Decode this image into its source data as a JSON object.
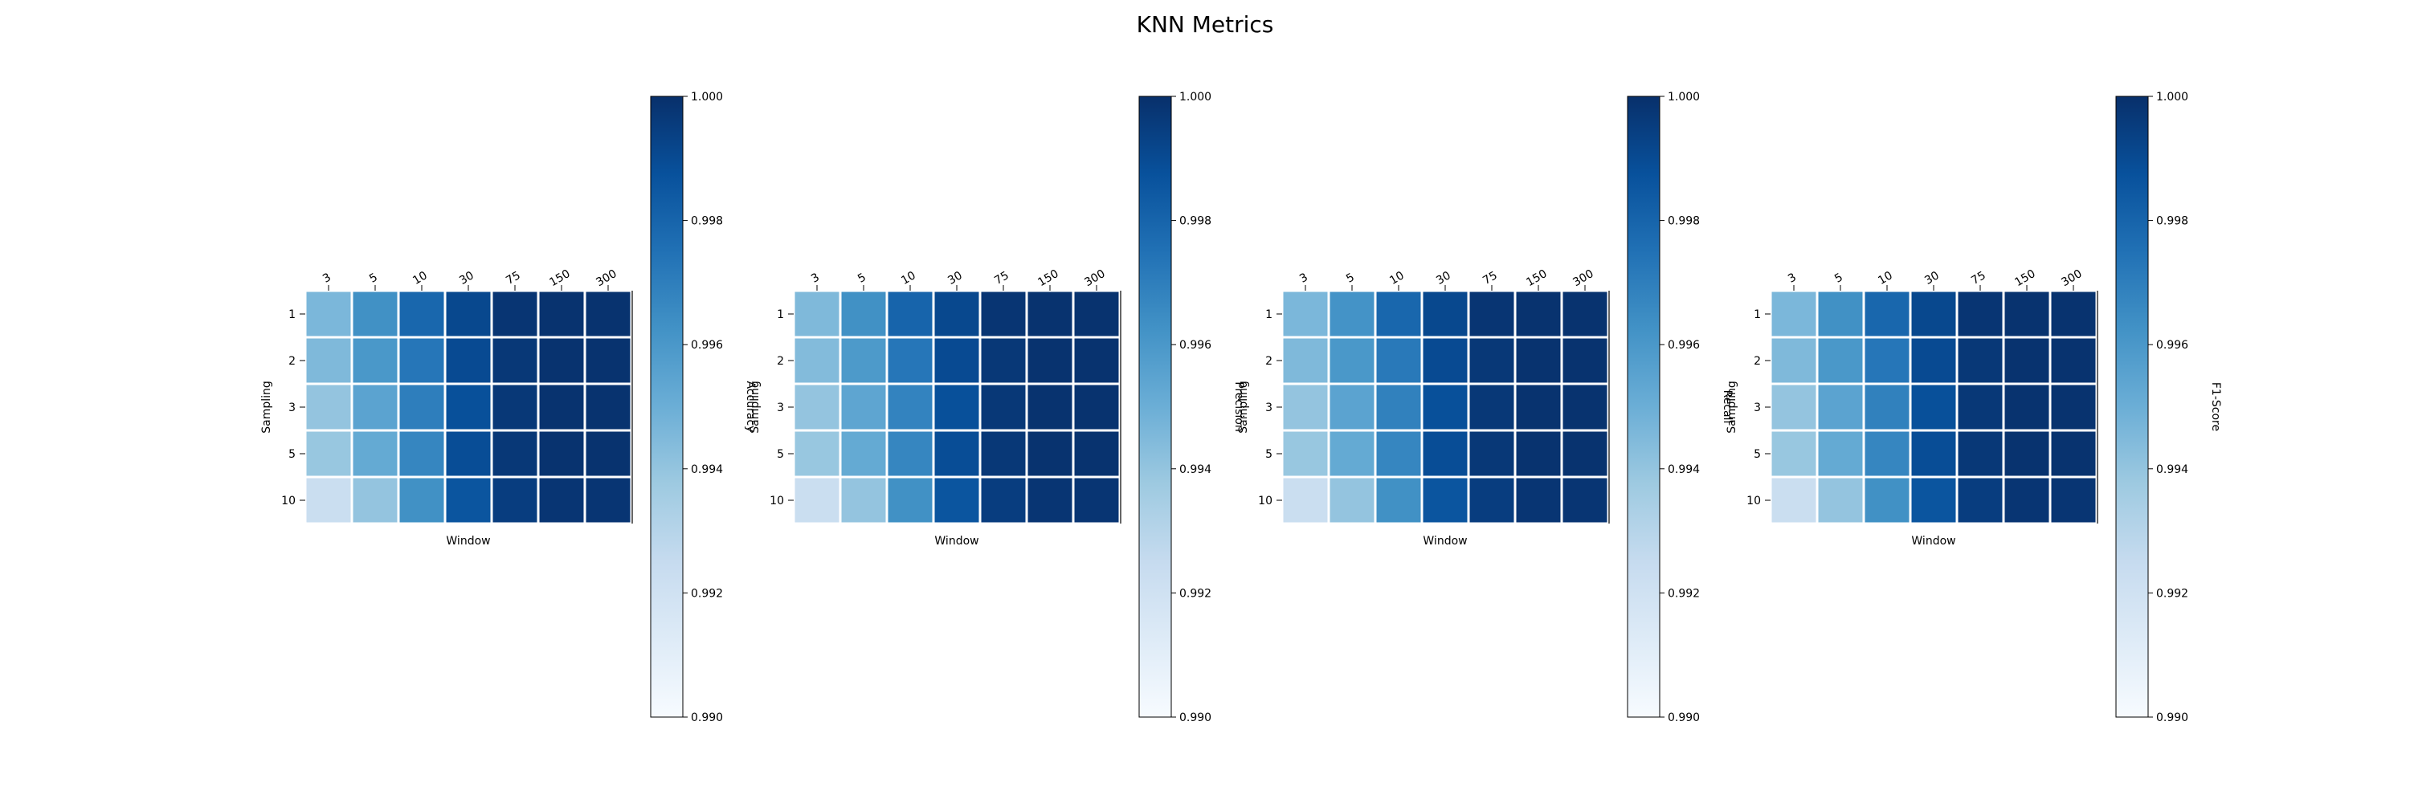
{
  "figure": {
    "title": "KNN Metrics"
  },
  "chart_data": [
    {
      "type": "heatmap",
      "title": "",
      "xlabel": "Window",
      "ylabel": "Sampling",
      "colorbar_label": "Accuracy",
      "colormap": "Blues",
      "vmin": 0.99,
      "vmax": 1.0,
      "colorbar_ticks": [
        "0.990",
        "0.992",
        "0.994",
        "0.996",
        "0.998",
        "1.000"
      ],
      "x": [
        "3",
        "5",
        "10",
        "30",
        "75",
        "150",
        "300"
      ],
      "y": [
        "1",
        "2",
        "3",
        "5",
        "10"
      ],
      "values": [
        [
          0.9946,
          0.9963,
          0.9979,
          0.9991,
          0.9998,
          0.9999,
          0.9999
        ],
        [
          0.9945,
          0.996,
          0.9973,
          0.999,
          0.9997,
          0.9999,
          0.9999
        ],
        [
          0.994,
          0.9955,
          0.997,
          0.9988,
          0.9997,
          0.9999,
          0.9999
        ],
        [
          0.9939,
          0.9952,
          0.9967,
          0.9989,
          0.9997,
          0.9999,
          0.9999
        ],
        [
          0.9923,
          0.994,
          0.9963,
          0.9986,
          0.9995,
          0.9998,
          0.9998
        ]
      ]
    },
    {
      "type": "heatmap",
      "title": "",
      "xlabel": "Window",
      "ylabel": "Sampling",
      "colorbar_label": "Precision",
      "colormap": "Blues",
      "vmin": 0.99,
      "vmax": 1.0,
      "colorbar_ticks": [
        "0.990",
        "0.992",
        "0.994",
        "0.996",
        "0.998",
        "1.000"
      ],
      "x": [
        "3",
        "5",
        "10",
        "30",
        "75",
        "150",
        "300"
      ],
      "y": [
        "1",
        "2",
        "3",
        "5",
        "10"
      ],
      "values": [
        [
          0.9945,
          0.9963,
          0.998,
          0.9991,
          0.9998,
          0.9999,
          0.9999
        ],
        [
          0.9944,
          0.9959,
          0.9973,
          0.999,
          0.9997,
          0.9999,
          0.9999
        ],
        [
          0.994,
          0.9954,
          0.9968,
          0.9988,
          0.9997,
          0.9999,
          0.9999
        ],
        [
          0.9939,
          0.9952,
          0.9967,
          0.9989,
          0.9997,
          0.9999,
          0.9999
        ],
        [
          0.9923,
          0.994,
          0.9963,
          0.9986,
          0.9995,
          0.9998,
          0.9998
        ]
      ]
    },
    {
      "type": "heatmap",
      "title": "",
      "xlabel": "Window",
      "ylabel": "Sampling",
      "colorbar_label": "Recall",
      "colormap": "Blues",
      "vmin": 0.99,
      "vmax": 1.0,
      "colorbar_ticks": [
        "0.990",
        "0.992",
        "0.994",
        "0.996",
        "0.998",
        "1.000"
      ],
      "x": [
        "3",
        "5",
        "10",
        "30",
        "75",
        "150",
        "300"
      ],
      "y": [
        "1",
        "2",
        "3",
        "5",
        "10"
      ],
      "values": [
        [
          0.9946,
          0.9962,
          0.9979,
          0.9991,
          0.9998,
          0.9999,
          0.9999
        ],
        [
          0.9945,
          0.996,
          0.9972,
          0.999,
          0.9997,
          0.9999,
          0.9999
        ],
        [
          0.994,
          0.9955,
          0.9969,
          0.9988,
          0.9997,
          0.9999,
          0.9999
        ],
        [
          0.9939,
          0.9952,
          0.9967,
          0.9989,
          0.9997,
          0.9999,
          0.9999
        ],
        [
          0.9923,
          0.994,
          0.9963,
          0.9986,
          0.9995,
          0.9998,
          0.9998
        ]
      ]
    },
    {
      "type": "heatmap",
      "title": "",
      "xlabel": "Window",
      "ylabel": "Sampling",
      "colorbar_label": "F1-Score",
      "colormap": "Blues",
      "vmin": 0.99,
      "vmax": 1.0,
      "colorbar_ticks": [
        "0.990",
        "0.992",
        "0.994",
        "0.996",
        "0.998",
        "1.000"
      ],
      "x": [
        "3",
        "5",
        "10",
        "30",
        "75",
        "150",
        "300"
      ],
      "y": [
        "1",
        "2",
        "3",
        "5",
        "10"
      ],
      "values": [
        [
          0.9946,
          0.9963,
          0.9979,
          0.9991,
          0.9998,
          0.9999,
          0.9999
        ],
        [
          0.9945,
          0.996,
          0.9973,
          0.999,
          0.9997,
          0.9999,
          0.9999
        ],
        [
          0.994,
          0.9955,
          0.9969,
          0.9988,
          0.9997,
          0.9999,
          0.9999
        ],
        [
          0.9939,
          0.9952,
          0.9967,
          0.9989,
          0.9997,
          0.9999,
          0.9999
        ],
        [
          0.9923,
          0.994,
          0.9963,
          0.9986,
          0.9995,
          0.9998,
          0.9998
        ]
      ]
    }
  ]
}
